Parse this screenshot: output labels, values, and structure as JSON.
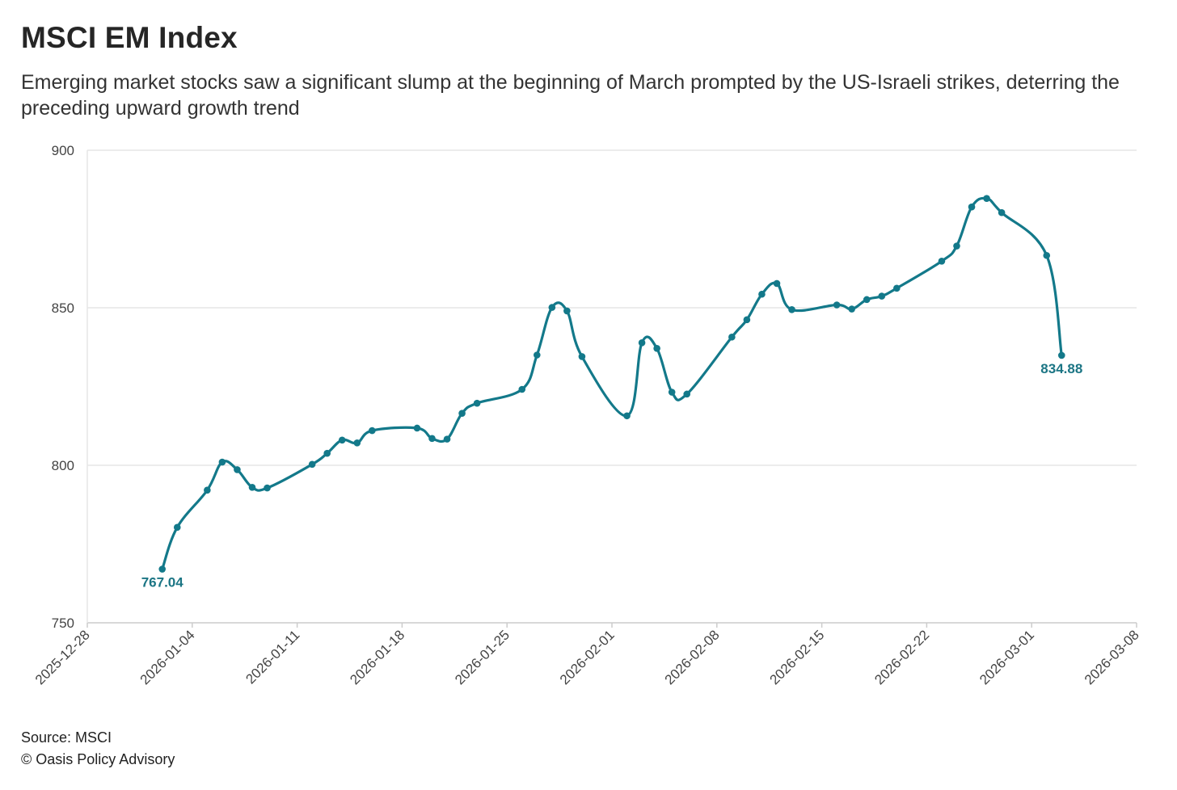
{
  "header": {
    "title": "MSCI EM Index",
    "subtitle": "Emerging market stocks saw a significant slump at the beginning of March prompted by the US-Israeli strikes, deterring the preceding upward growth trend"
  },
  "footer": {
    "source": "Source: MSCI",
    "copyright": "© Oasis Policy Advisory"
  },
  "colors": {
    "line": "#13798a",
    "grid": "#e6e6e6",
    "axis": "#cccccc",
    "label": "#1b7584"
  },
  "chart_data": {
    "type": "line",
    "title": "MSCI EM Index",
    "xlabel": "",
    "ylabel": "",
    "ylim": [
      750,
      900
    ],
    "y_ticks": [
      750,
      800,
      850,
      900
    ],
    "x_range": [
      "2025-12-28",
      "2026-03-08"
    ],
    "x_ticks": [
      "2025-12-28",
      "2026-01-04",
      "2026-01-11",
      "2026-01-18",
      "2026-01-25",
      "2026-02-01",
      "2026-02-08",
      "2026-02-15",
      "2026-02-22",
      "2026-03-01",
      "2026-03-08"
    ],
    "grid": true,
    "series": [
      {
        "name": "MSCI EM Index",
        "x": [
          "2026-01-02",
          "2026-01-03",
          "2026-01-05",
          "2026-01-06",
          "2026-01-07",
          "2026-01-08",
          "2026-01-09",
          "2026-01-12",
          "2026-01-13",
          "2026-01-14",
          "2026-01-15",
          "2026-01-16",
          "2026-01-19",
          "2026-01-20",
          "2026-01-21",
          "2026-01-22",
          "2026-01-23",
          "2026-01-26",
          "2026-01-27",
          "2026-01-28",
          "2026-01-29",
          "2026-01-30",
          "2026-02-02",
          "2026-02-03",
          "2026-02-04",
          "2026-02-05",
          "2026-02-06",
          "2026-02-09",
          "2026-02-10",
          "2026-02-11",
          "2026-02-12",
          "2026-02-13",
          "2026-02-16",
          "2026-02-17",
          "2026-02-18",
          "2026-02-19",
          "2026-02-20",
          "2026-02-23",
          "2026-02-24",
          "2026-02-25",
          "2026-02-26",
          "2026-02-27",
          "2026-03-02",
          "2026-03-03"
        ],
        "values": [
          767.04,
          780.3,
          792.1,
          801.0,
          798.6,
          793.0,
          792.8,
          800.3,
          803.8,
          808.0,
          807.1,
          811.0,
          811.8,
          808.5,
          808.3,
          816.5,
          819.7,
          824.1,
          835.0,
          850.1,
          849.0,
          834.5,
          815.7,
          838.9,
          837.1,
          823.2,
          822.6,
          840.7,
          846.2,
          854.3,
          857.7,
          849.4,
          850.9,
          849.6,
          852.6,
          853.7,
          856.2,
          864.8,
          869.6,
          882.0,
          884.7,
          880.2,
          866.6,
          834.88
        ]
      }
    ],
    "annotations": [
      {
        "x": "2026-01-02",
        "y": 767.04,
        "text": "767.04"
      },
      {
        "x": "2026-03-03",
        "y": 834.88,
        "text": "834.88"
      }
    ]
  }
}
